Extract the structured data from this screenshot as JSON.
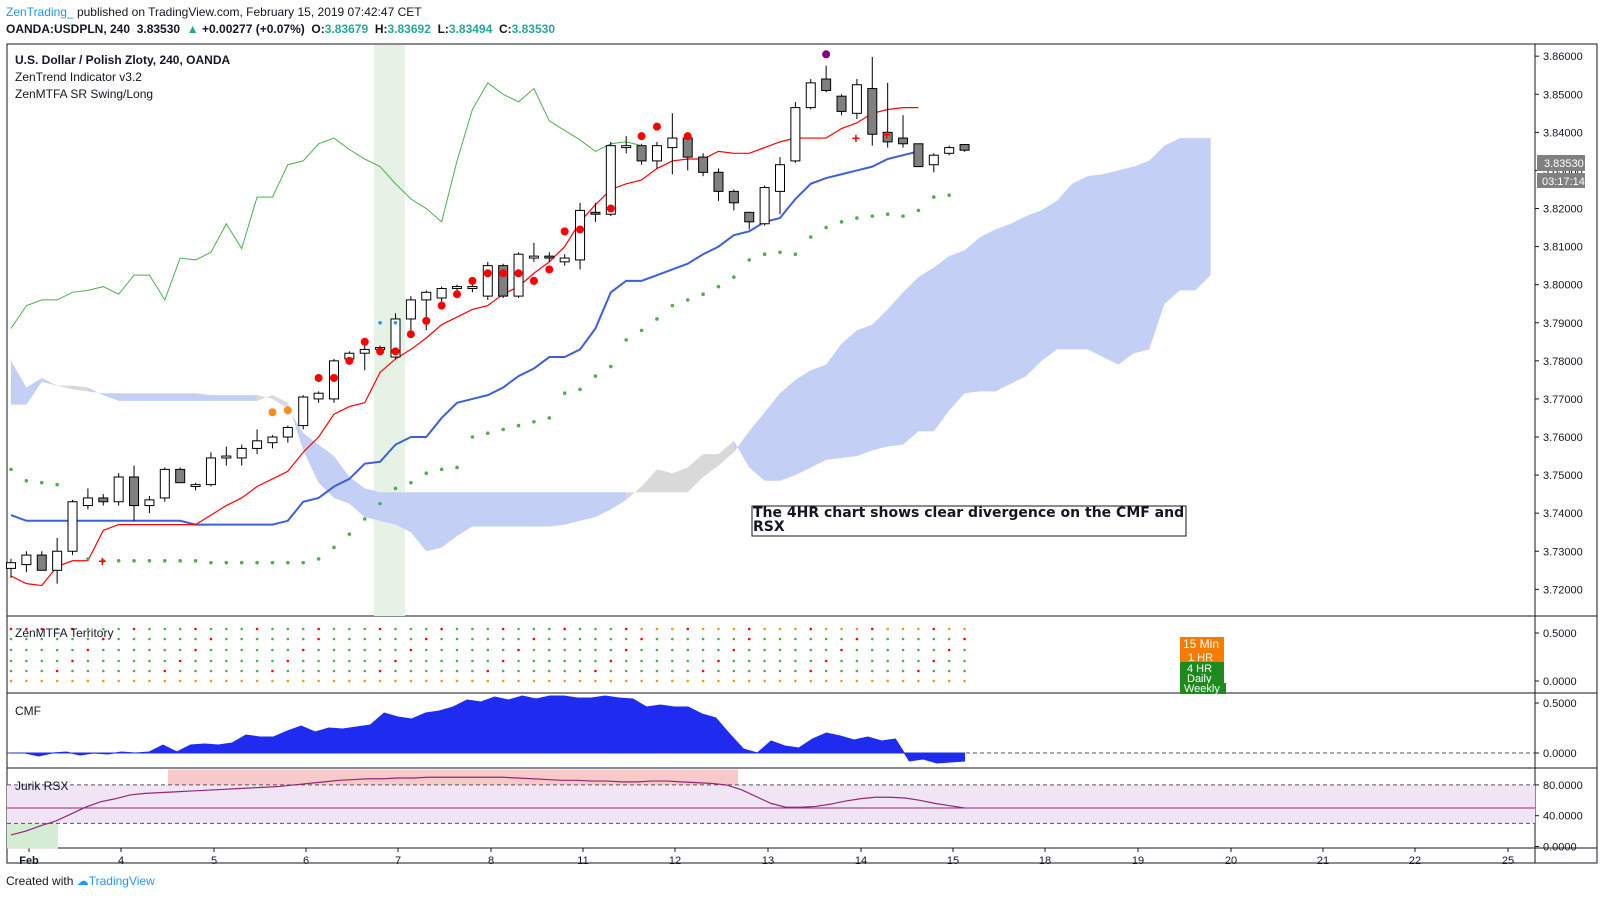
{
  "header": {
    "author": "ZenTrading_",
    "published": "published on TradingView.com, February 15, 2019 07:42:47 CET",
    "symbol": "OANDA:USDPLN, 240",
    "last": "3.83530",
    "change": "+0.00277 (+0.07%)",
    "o_label": "O:",
    "o": "3.83679",
    "h_label": "H:",
    "h": "3.83692",
    "l_label": "L:",
    "l": "3.83494",
    "c_label": "C:",
    "c": "3.83530"
  },
  "legend": {
    "title": "U.S. Dollar / Polish Zloty, 240, OANDA",
    "ind1": "ZenTrend Indicator v3.2",
    "ind2": "ZenMTFA SR Swing/Long"
  },
  "panes": {
    "territory": "ZenMTFA Territory",
    "cmf": "CMF",
    "rsx": "Jurik RSX"
  },
  "annotation": "The 4HR chart shows clear divergence on the CMF and RSX",
  "price_tag": "3.83530",
  "countdown": "03:17:14",
  "mtfa_labels": [
    "15 Min",
    "1 HR",
    "4 HR",
    "Daily",
    "Weekly"
  ],
  "footer": {
    "created": "Created with",
    "brand": "TradingView"
  },
  "colors": {
    "up_candle": "#ffffff",
    "down_candle": "#808080",
    "conversion": "#ff0000",
    "base": "#3d5fdb",
    "lagging": "#4caf50",
    "cloud_bull": "#c3cff5",
    "cloud_bear": "#d9d9d9",
    "cmf_fill": "#1f2cf0",
    "rsx_line": "#8e2a74",
    "highlight": "#e6f2e6"
  },
  "chart_data": {
    "type": "candlestick",
    "symbol": "USDPLN",
    "timeframe": "240",
    "x_tick_labels": [
      "Feb",
      "4",
      "5",
      "6",
      "7",
      "8",
      "11",
      "12",
      "13",
      "14",
      "15",
      "18",
      "19",
      "20",
      "21",
      "22",
      "25"
    ],
    "y_tick_labels": [
      "3.72000",
      "3.73000",
      "3.74000",
      "3.75000",
      "3.76000",
      "3.77000",
      "3.78000",
      "3.79000",
      "3.80000",
      "3.81000",
      "3.82000",
      "3.83000",
      "3.84000",
      "3.85000",
      "3.86000"
    ],
    "ylim": [
      3.713,
      3.8632
    ],
    "candles": [
      [
        3.7255,
        3.728,
        3.723,
        3.727
      ],
      [
        3.7265,
        3.73,
        3.7245,
        3.729
      ],
      [
        3.729,
        3.73,
        3.726,
        3.725
      ],
      [
        3.725,
        3.7335,
        3.7215,
        3.73
      ],
      [
        3.73,
        3.7435,
        3.729,
        3.743
      ],
      [
        3.742,
        3.7465,
        3.741,
        3.744
      ],
      [
        3.744,
        3.745,
        3.742,
        3.743
      ],
      [
        3.743,
        3.7505,
        3.742,
        3.7495
      ],
      [
        3.7495,
        3.7525,
        3.738,
        3.742
      ],
      [
        3.742,
        3.7445,
        3.74,
        3.7435
      ],
      [
        3.744,
        3.752,
        3.743,
        3.7515
      ],
      [
        3.7515,
        3.752,
        3.748,
        3.748
      ],
      [
        3.747,
        3.748,
        3.746,
        3.7475
      ],
      [
        3.7475,
        3.756,
        3.747,
        3.7545
      ],
      [
        3.7545,
        3.7575,
        3.7525,
        3.755
      ],
      [
        3.7545,
        3.758,
        3.7525,
        3.757
      ],
      [
        3.757,
        3.762,
        3.7555,
        3.759
      ],
      [
        3.7585,
        3.7605,
        3.757,
        3.76
      ],
      [
        3.76,
        3.763,
        3.7585,
        3.7625
      ],
      [
        3.763,
        3.771,
        3.762,
        3.7705
      ],
      [
        3.77,
        3.772,
        3.769,
        3.7715
      ],
      [
        3.77,
        3.7805,
        3.769,
        3.78
      ],
      [
        3.7805,
        3.7825,
        3.7795,
        3.782
      ],
      [
        3.782,
        3.7845,
        3.7775,
        3.783
      ],
      [
        3.783,
        3.784,
        3.7815,
        3.7835
      ],
      [
        3.781,
        3.7925,
        3.7805,
        3.791
      ],
      [
        3.791,
        3.797,
        3.787,
        3.796
      ],
      [
        3.796,
        3.7985,
        3.788,
        3.798
      ],
      [
        3.7965,
        3.7995,
        3.7955,
        3.799
      ],
      [
        3.799,
        3.8,
        3.7975,
        3.7995
      ],
      [
        3.799,
        3.8005,
        3.798,
        3.7995
      ],
      [
        3.797,
        3.806,
        3.796,
        3.805
      ],
      [
        3.805,
        3.8055,
        3.7965,
        3.797
      ],
      [
        3.797,
        3.8085,
        3.7965,
        3.808
      ],
      [
        3.807,
        3.811,
        3.806,
        3.8075
      ],
      [
        3.8075,
        3.8085,
        3.806,
        3.807
      ],
      [
        3.806,
        3.808,
        3.805,
        3.807
      ],
      [
        3.8065,
        3.8215,
        3.804,
        3.8195
      ],
      [
        3.819,
        3.8215,
        3.8165,
        3.8185
      ],
      [
        3.8185,
        3.8375,
        3.818,
        3.8365
      ],
      [
        3.836,
        3.839,
        3.8345,
        3.8365
      ],
      [
        3.8365,
        3.837,
        3.8315,
        3.8325
      ],
      [
        3.8325,
        3.8375,
        3.8305,
        3.8365
      ],
      [
        3.836,
        3.845,
        3.829,
        3.8385
      ],
      [
        3.8385,
        3.8395,
        3.83,
        3.8335
      ],
      [
        3.8335,
        3.8345,
        3.8285,
        3.8295
      ],
      [
        3.8295,
        3.8305,
        3.822,
        3.8245
      ],
      [
        3.8245,
        3.825,
        3.8195,
        3.8215
      ],
      [
        3.819,
        3.819,
        3.8145,
        3.8165
      ],
      [
        3.816,
        3.826,
        3.8155,
        3.8255
      ],
      [
        3.8245,
        3.8335,
        3.8185,
        3.8315
      ],
      [
        3.8325,
        3.848,
        3.832,
        3.8465
      ],
      [
        3.8465,
        3.854,
        3.846,
        3.853
      ],
      [
        3.854,
        3.8575,
        3.8505,
        3.851
      ],
      [
        3.8495,
        3.85,
        3.8445,
        3.8455
      ],
      [
        3.845,
        3.854,
        3.8435,
        3.8525
      ],
      [
        3.8515,
        3.8598,
        3.8365,
        3.8395
      ],
      [
        3.84,
        3.853,
        3.836,
        3.8375
      ],
      [
        3.8385,
        3.8445,
        3.836,
        3.837
      ],
      [
        3.837,
        3.837,
        3.831,
        3.831
      ],
      [
        3.8315,
        3.8345,
        3.8295,
        3.834
      ],
      [
        3.8345,
        3.8365,
        3.834,
        3.836
      ],
      [
        3.8368,
        3.8369,
        3.8349,
        3.8353
      ]
    ],
    "conversion_line": [
      3.7235,
      3.7215,
      3.721,
      3.726,
      3.7275,
      3.7275,
      3.7355,
      3.737,
      3.737,
      3.737,
      3.737,
      3.737,
      3.737,
      3.7395,
      3.742,
      3.744,
      3.747,
      3.749,
      3.751,
      3.756,
      3.76,
      3.766,
      3.768,
      3.769,
      3.777,
      3.7805,
      3.783,
      3.786,
      3.7895,
      3.7915,
      3.7935,
      3.7945,
      3.7975,
      3.7995,
      3.803,
      3.806,
      3.81,
      3.8165,
      3.821,
      3.825,
      3.8265,
      3.8275,
      3.8305,
      3.8325,
      3.833,
      3.833,
      3.835,
      3.8345,
      3.8345,
      3.836,
      3.8375,
      3.8385,
      3.8385,
      3.8385,
      3.841,
      3.8425,
      3.845,
      3.846,
      3.8465,
      3.8465
    ],
    "base_line": [
      3.7395,
      3.738,
      3.738,
      3.738,
      3.738,
      3.738,
      3.738,
      3.738,
      3.738,
      3.738,
      3.738,
      3.738,
      3.737,
      3.737,
      3.737,
      3.737,
      3.737,
      3.737,
      3.738,
      3.743,
      3.744,
      3.747,
      3.749,
      3.753,
      3.7535,
      3.758,
      3.76,
      3.76,
      3.765,
      3.769,
      3.77,
      3.771,
      3.773,
      3.776,
      3.778,
      3.781,
      3.781,
      3.783,
      3.7885,
      3.798,
      3.801,
      3.801,
      3.8025,
      3.804,
      3.8055,
      3.808,
      3.81,
      3.813,
      3.814,
      3.8165,
      3.8175,
      3.8225,
      3.8265,
      3.828,
      3.829,
      3.83,
      3.831,
      3.833,
      3.834,
      3.835
    ],
    "lagging_span": [
      3.7885,
      3.7945,
      3.796,
      3.796,
      3.798,
      3.7985,
      3.7995,
      3.7975,
      3.8025,
      3.8025,
      3.796,
      3.807,
      3.8065,
      3.8085,
      3.816,
      3.8095,
      3.823,
      3.823,
      3.8315,
      3.8325,
      3.837,
      3.8385,
      3.8355,
      3.833,
      3.831,
      3.8265,
      3.8225,
      3.82,
      3.8165,
      3.8325,
      3.846,
      3.853,
      3.85,
      3.848,
      3.8515,
      3.843,
      3.8405,
      3.838,
      3.835,
      3.837,
      3.8375,
      3.8365
    ],
    "cloud": {
      "span_a": [
        3.78,
        3.773,
        3.7755,
        3.7735,
        3.7725,
        3.772,
        3.7715,
        3.7715,
        3.7715,
        3.7715,
        3.7715,
        3.7715,
        3.7715,
        3.771,
        3.771,
        3.771,
        3.771,
        3.77,
        3.7675,
        3.761,
        3.758,
        3.755,
        3.7495,
        3.7465,
        3.7455,
        3.7455,
        3.7455,
        3.7455,
        3.7455,
        3.7455,
        3.7455,
        3.7455,
        3.7455,
        3.7455,
        3.7455,
        3.7455,
        3.7455,
        3.7455,
        3.7455,
        3.7455,
        3.7455,
        3.7455,
        3.7455,
        3.7455,
        3.7455,
        3.7495,
        3.7525,
        3.756,
        3.7615,
        3.7665,
        3.7715,
        3.775,
        3.7775,
        3.779,
        3.7845,
        3.788,
        3.7895,
        3.7935,
        3.798,
        3.802,
        3.8045,
        3.8075,
        3.809,
        3.8125,
        3.8145,
        3.816,
        3.818,
        3.8195,
        3.822,
        3.8265,
        3.8285,
        3.829,
        3.83,
        3.831,
        3.8325,
        3.8365,
        3.8385,
        3.8385,
        3.8385
      ],
      "span_b": [
        3.7685,
        3.7685,
        3.7745,
        3.7735,
        3.7735,
        3.773,
        3.771,
        3.7695,
        3.7695,
        3.7695,
        3.7695,
        3.7695,
        3.7695,
        3.7695,
        3.7695,
        3.7695,
        3.7695,
        3.771,
        3.769,
        3.7565,
        3.748,
        3.744,
        3.7425,
        3.739,
        3.738,
        3.737,
        3.735,
        3.73,
        3.731,
        3.734,
        3.7365,
        3.7365,
        3.7365,
        3.7365,
        3.7365,
        3.7365,
        3.737,
        3.738,
        3.739,
        3.741,
        3.7435,
        3.747,
        3.7515,
        3.7505,
        3.752,
        3.7555,
        3.7555,
        3.759,
        3.752,
        3.7485,
        3.7485,
        3.75,
        3.752,
        3.754,
        3.7545,
        3.755,
        3.7565,
        3.7575,
        3.758,
        3.7615,
        3.7615,
        3.767,
        3.7715,
        3.772,
        3.772,
        3.774,
        3.776,
        3.78,
        3.783,
        3.783,
        3.783,
        3.781,
        3.779,
        3.782,
        3.783,
        3.795,
        3.7985,
        3.7985,
        3.8025
      ]
    },
    "highlight_range": [
      "6",
      "7"
    ],
    "cmf": {
      "yticks": [
        "0.0000",
        "0.5000"
      ],
      "values": [
        0,
        0,
        -0.03,
        0,
        0.01,
        -0.02,
        0,
        -0.01,
        0.01,
        0,
        0.01,
        0.08,
        0.01,
        0.08,
        0.09,
        0.08,
        0.1,
        0.18,
        0.16,
        0.16,
        0.22,
        0.27,
        0.21,
        0.25,
        0.24,
        0.26,
        0.28,
        0.4,
        0.36,
        0.34,
        0.4,
        0.42,
        0.46,
        0.53,
        0.51,
        0.56,
        0.53,
        0.57,
        0.54,
        0.57,
        0.57,
        0.55,
        0.55,
        0.57,
        0.55,
        0.54,
        0.46,
        0.48,
        0.46,
        0.46,
        0.39,
        0.35,
        0.19,
        0.04,
        0,
        0.12,
        0.07,
        0.05,
        0.14,
        0.2,
        0.17,
        0.13,
        0.16,
        0.12,
        0.14,
        -0.08,
        -0.06,
        -0.1,
        -0.09,
        -0.08
      ],
      "ylim": [
        -0.15,
        0.6
      ]
    },
    "rsx": {
      "yticks": [
        "0.0000",
        "40.0000",
        "80.0000"
      ],
      "values": [
        15,
        20,
        27,
        33,
        42,
        51,
        58,
        62,
        67,
        69,
        70,
        71,
        72,
        73,
        74,
        75,
        76,
        77,
        78,
        80,
        82,
        84,
        86,
        87,
        88,
        88,
        89,
        89,
        90,
        90,
        90,
        90,
        90,
        90,
        89,
        88,
        87,
        86,
        86,
        85,
        85,
        84,
        84,
        85,
        85,
        84,
        83,
        82,
        80,
        74,
        65,
        56,
        51,
        51,
        52,
        55,
        59,
        62,
        64,
        64,
        63,
        60,
        56,
        53,
        50
      ],
      "ylim": [
        -2,
        102
      ],
      "levels": [
        80,
        50,
        30
      ]
    }
  }
}
